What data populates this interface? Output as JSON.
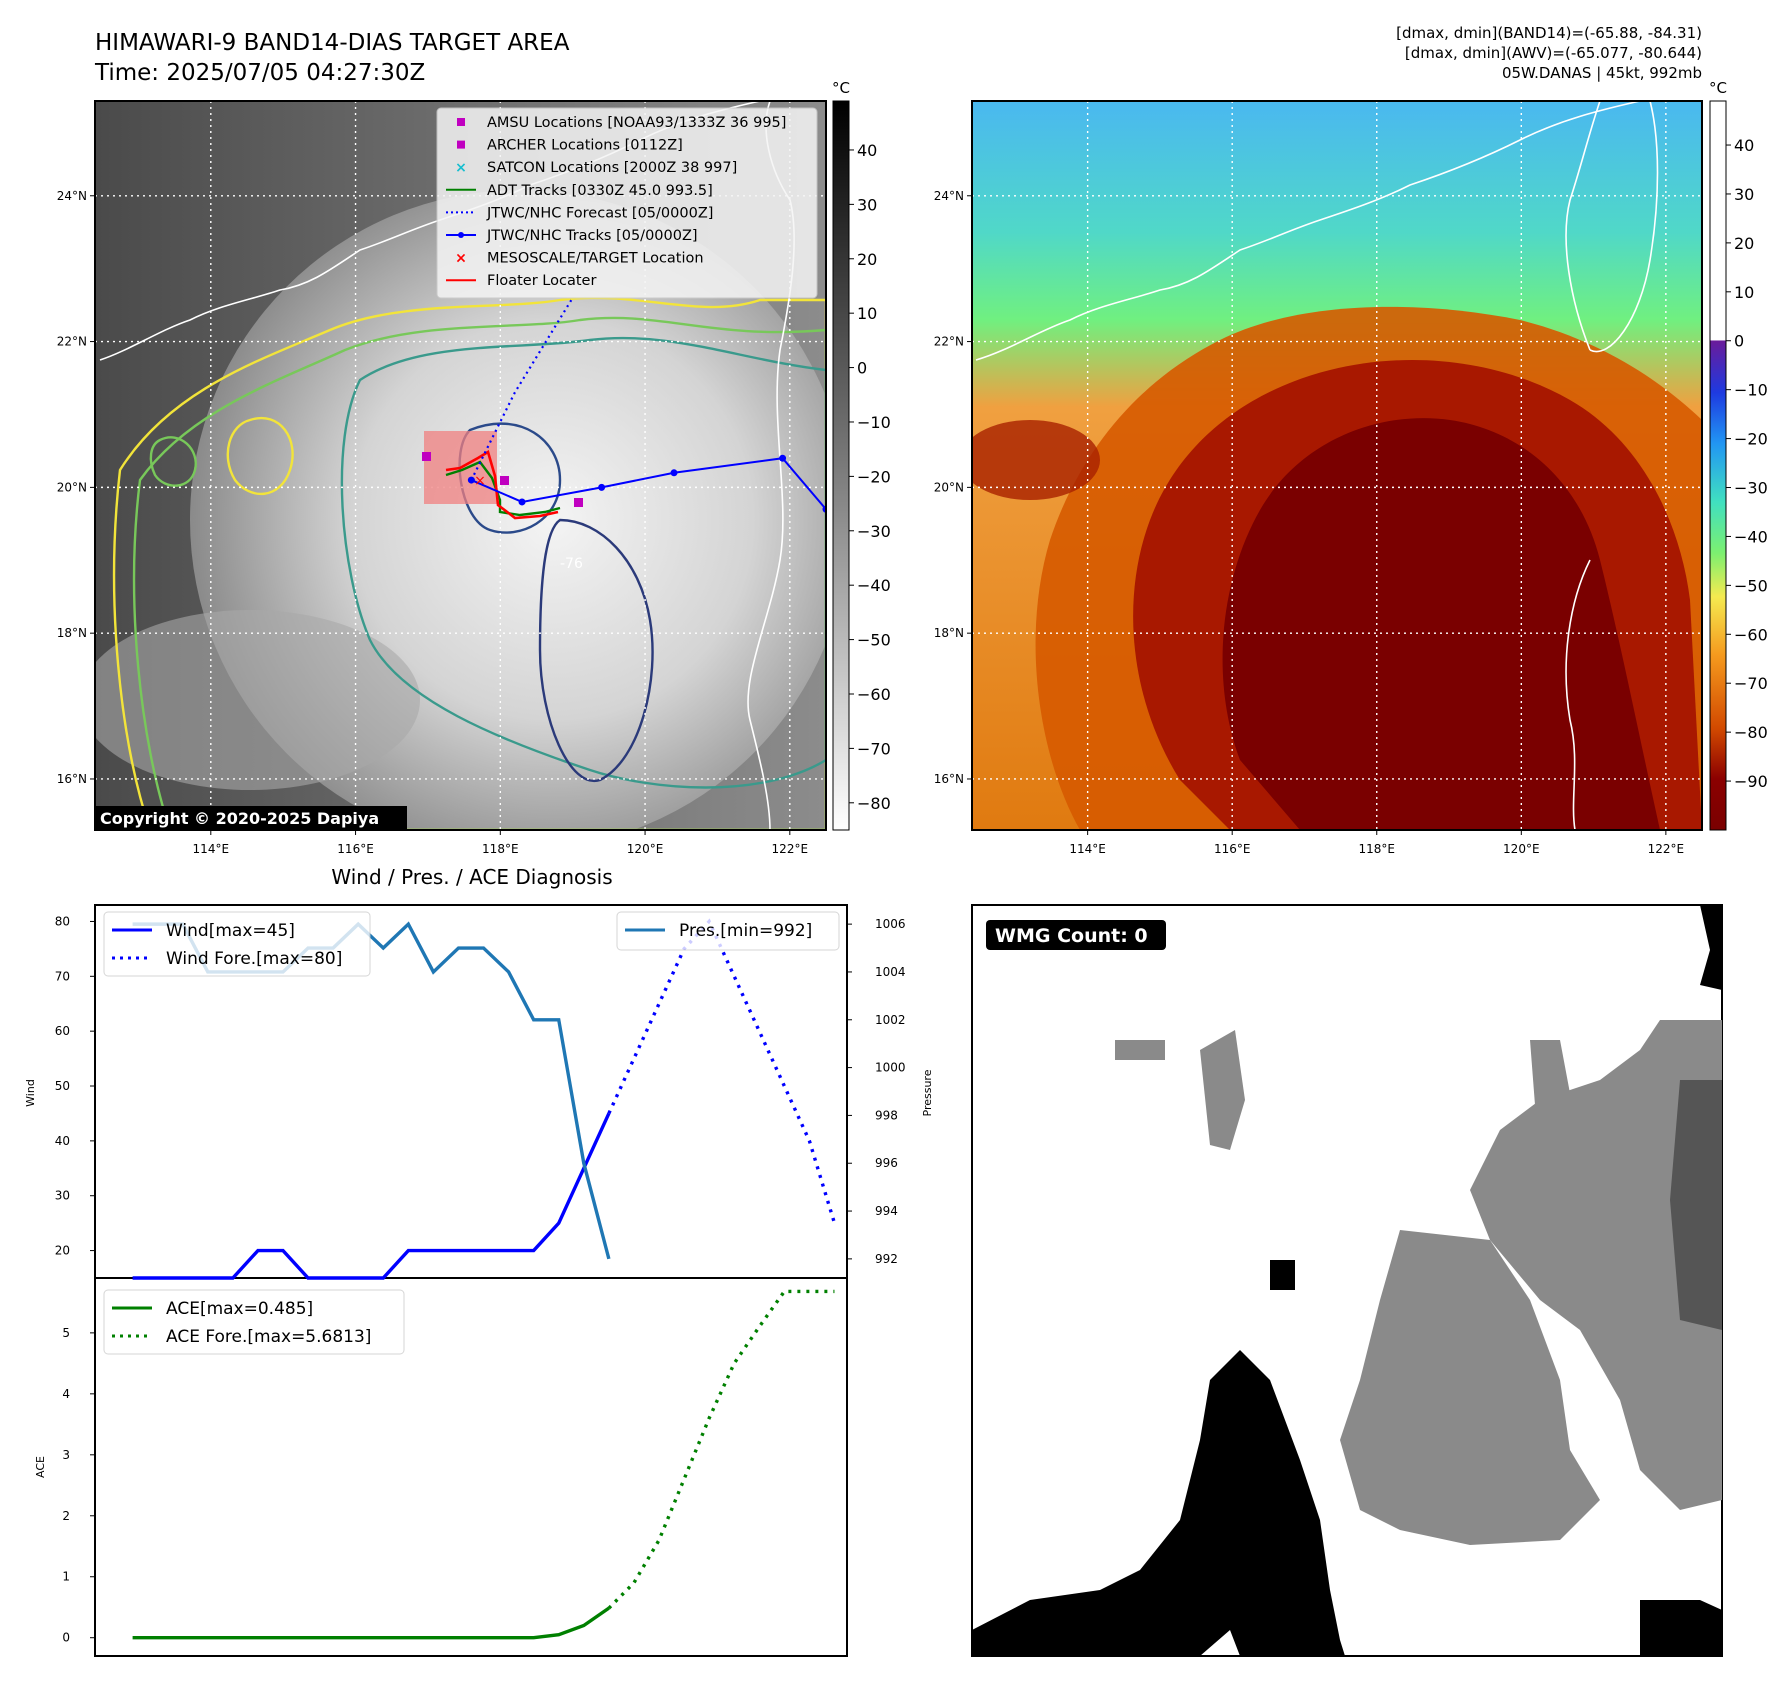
{
  "header": {
    "title_line1": "HIMAWARI-9 BAND14-DIAS TARGET AREA",
    "title_line2": "Time: 2025/07/05 04:27:30Z",
    "info_line1": "[dmax, dmin](BAND14)=(-65.88, -84.31)",
    "info_line2": "[dmax, dmin](AWV)=(-65.077, -80.644)",
    "info_line3": "05W.DANAS | 45kt, 992mb"
  },
  "map": {
    "lat_labels": [
      "24°N",
      "22°N",
      "20°N",
      "18°N",
      "16°N"
    ],
    "lat_values": [
      24,
      22,
      20,
      18,
      16
    ],
    "lon_labels": [
      "114°E",
      "116°E",
      "118°E",
      "120°E",
      "122°E"
    ],
    "lon_values": [
      114,
      116,
      118,
      120,
      122
    ],
    "lon_range": [
      112.4,
      122.5
    ],
    "lat_range": [
      15.3,
      25.3
    ],
    "copyright": "Copyright © 2020-2025 Dapiya",
    "contour_label": "-76",
    "legend": [
      {
        "label": "AMSU Locations [NOAA93/1333Z 36 995]",
        "symbol": "square",
        "color": "#c000c0"
      },
      {
        "label": "ARCHER Locations [0112Z]",
        "symbol": "square",
        "color": "#c000c0"
      },
      {
        "label": "SATCON Locations [2000Z 38 997]",
        "symbol": "x",
        "color": "#17becf"
      },
      {
        "label": "ADT Tracks [0330Z 45.0 993.5]",
        "symbol": "line",
        "color": "#008000"
      },
      {
        "label": "JTWC/NHC Forecast [05/0000Z]",
        "symbol": "dotted",
        "color": "#0000ff"
      },
      {
        "label": "JTWC/NHC Tracks [05/0000Z]",
        "symbol": "line-dot",
        "color": "#0000ff"
      },
      {
        "label": "MESOSCALE/TARGET Location",
        "symbol": "x",
        "color": "#ff0000"
      },
      {
        "label": "Floater Locater",
        "symbol": "line",
        "color": "#ff0000"
      }
    ],
    "jtwc_track": [
      [
        122.5,
        19.7
      ],
      [
        121.9,
        20.4
      ],
      [
        120.4,
        20.2
      ],
      [
        119.4,
        20.0
      ],
      [
        118.3,
        19.8
      ],
      [
        117.6,
        20.1
      ]
    ],
    "jtwc_forecast": [
      [
        117.6,
        20.1
      ],
      [
        118.2,
        21.3
      ],
      [
        119.0,
        22.6
      ]
    ]
  },
  "colorbar_left": {
    "unit": "°C",
    "ticks": [
      40,
      30,
      20,
      10,
      0,
      -10,
      -20,
      -30,
      -40,
      -50,
      -60,
      -70,
      -80
    ],
    "tick_labels": [
      "40",
      "30",
      "20",
      "10",
      "0",
      "−10",
      "−20",
      "−30",
      "−40",
      "−50",
      "−60",
      "−70",
      "−80"
    ],
    "range": [
      -85,
      49
    ]
  },
  "colorbar_right": {
    "unit": "°C",
    "ticks": [
      40,
      30,
      20,
      10,
      0,
      -10,
      -20,
      -30,
      -40,
      -50,
      -60,
      -70,
      -80,
      -90
    ],
    "tick_labels": [
      "40",
      "30",
      "20",
      "10",
      "0",
      "−10",
      "−20",
      "−30",
      "−40",
      "−50",
      "−60",
      "−70",
      "−80",
      "−90"
    ],
    "range": [
      -100,
      49
    ]
  },
  "diagnosis": {
    "title": "Wind / Pres. / ACE Diagnosis",
    "wind_ylabel": "Wind",
    "pres_ylabel": "Pressure",
    "ace_ylabel": "ACE",
    "wind_legend": "Wind[max=45]",
    "wind_fore_legend": "Wind Fore.[max=80]",
    "pres_legend": "Pres.[min=992]",
    "ace_legend": "ACE[max=0.485]",
    "ace_fore_legend": "ACE Fore.[max=5.6813]",
    "wind_yticks": [
      80,
      70,
      60,
      50,
      40,
      30,
      20
    ],
    "pres_yticks": [
      1006,
      1004,
      1002,
      1000,
      998,
      996,
      994,
      992
    ],
    "ace_yticks": [
      5,
      4,
      3,
      2,
      1,
      0
    ]
  },
  "chart_data": [
    {
      "type": "line",
      "title": "Wind / Pres. / ACE Diagnosis",
      "ylabel": "Wind",
      "ylim": [
        15,
        83
      ],
      "xlim": [
        -1.5,
        28.5
      ],
      "series": [
        {
          "name": "Wind[max=45]",
          "color": "#0000ff",
          "style": "solid",
          "x": [
            0,
            1,
            2,
            3,
            4,
            5,
            6,
            7,
            8,
            9,
            10,
            11,
            12,
            13,
            14,
            15,
            16,
            17,
            18,
            19
          ],
          "values": [
            15,
            15,
            15,
            15,
            15,
            20,
            20,
            15,
            15,
            15,
            15,
            20,
            20,
            20,
            20,
            20,
            20,
            25,
            35,
            45
          ]
        },
        {
          "name": "Wind Fore.[max=80]",
          "color": "#0000ff",
          "style": "dotted",
          "x": [
            19,
            20,
            21,
            22,
            23,
            24,
            25,
            26,
            27,
            28
          ],
          "values": [
            45,
            55,
            65,
            75,
            80,
            70,
            60,
            50,
            40,
            25
          ]
        }
      ]
    },
    {
      "type": "line",
      "ylabel": "Pressure",
      "ylim": [
        991.2,
        1006.8
      ],
      "xlim": [
        -1.5,
        28.5
      ],
      "series": [
        {
          "name": "Pres.[min=992]",
          "color": "#1f77b4",
          "style": "solid",
          "x": [
            0,
            1,
            2,
            3,
            4,
            5,
            6,
            7,
            8,
            9,
            10,
            11,
            12,
            13,
            14,
            15,
            16,
            17,
            18,
            19
          ],
          "values": [
            1006,
            1006,
            1006,
            1004,
            1004,
            1004,
            1004,
            1005,
            1005,
            1006,
            1005,
            1006,
            1004,
            1005,
            1005,
            1004,
            1002,
            1002,
            996,
            992
          ]
        }
      ]
    },
    {
      "type": "line",
      "ylabel": "ACE",
      "ylim": [
        -0.3,
        5.9
      ],
      "xlim": [
        -1.5,
        28.5
      ],
      "series": [
        {
          "name": "ACE[max=0.485]",
          "color": "#008000",
          "style": "solid",
          "x": [
            0,
            4,
            8,
            12,
            16,
            17,
            18,
            19
          ],
          "values": [
            0,
            0,
            0,
            0,
            0,
            0.05,
            0.2,
            0.485
          ]
        },
        {
          "name": "ACE Fore.[max=5.6813]",
          "color": "#008000",
          "style": "dotted",
          "x": [
            19,
            20,
            21,
            22,
            23,
            24,
            25,
            26,
            27,
            28
          ],
          "values": [
            0.485,
            0.9,
            1.6,
            2.6,
            3.6,
            4.5,
            5.1,
            5.68,
            5.68,
            5.68
          ]
        }
      ]
    }
  ],
  "wmg": {
    "label": "WMG Count: 0"
  }
}
